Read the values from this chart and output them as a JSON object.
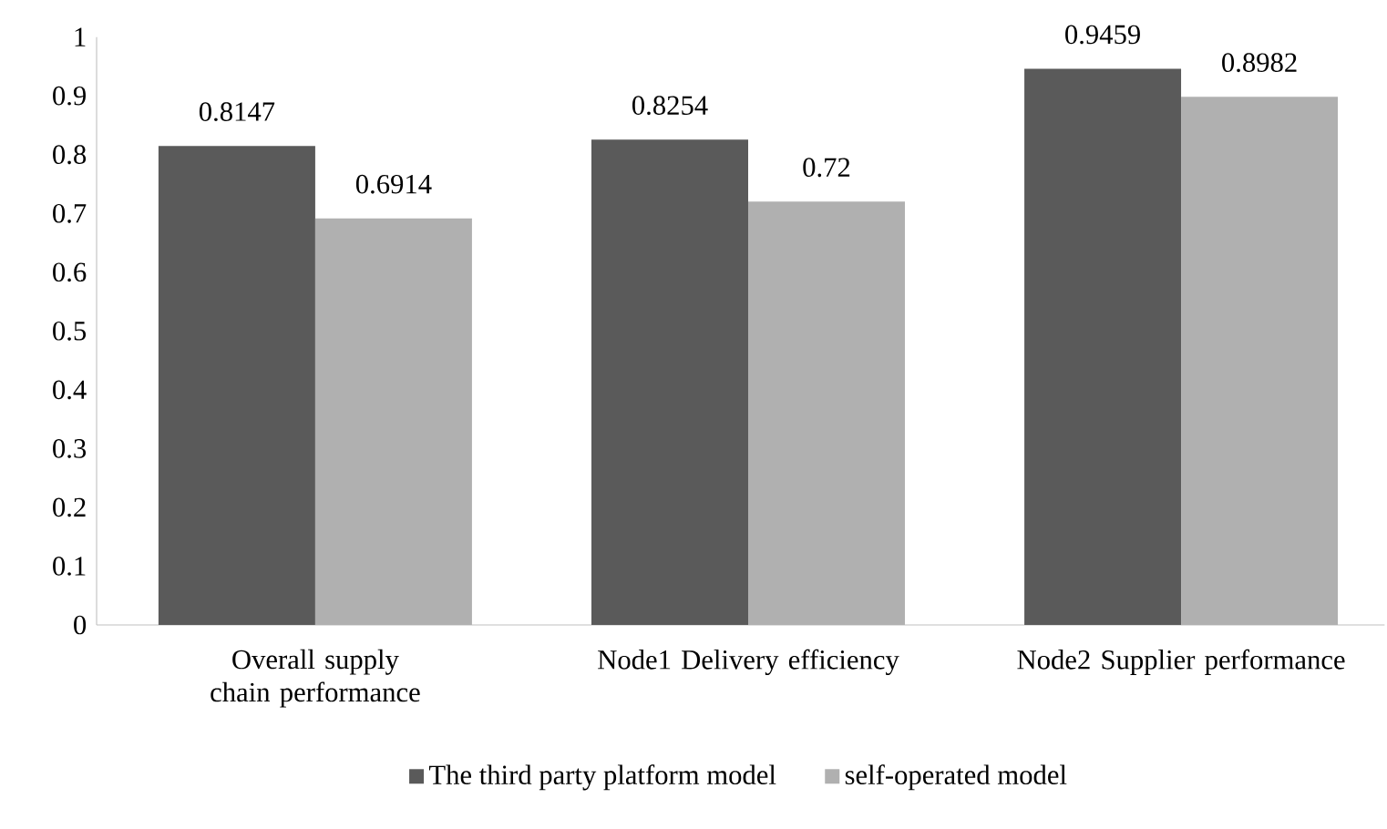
{
  "chart_data": {
    "type": "bar",
    "categories": [
      "Overall supply chain performance",
      "Node1 Delivery efficiency",
      "Node2 Supplier performance"
    ],
    "series": [
      {
        "name": "The third party platform model",
        "color": "#5a5a5a",
        "values": [
          0.8147,
          0.8254,
          0.9459
        ],
        "value_labels": [
          "0.8147",
          "0.8254",
          "0.9459"
        ]
      },
      {
        "name": "self-operated model",
        "color": "#b0b0b0",
        "values": [
          0.6914,
          0.72,
          0.8982
        ],
        "value_labels": [
          "0.6914",
          "0.72",
          "0.8982"
        ]
      }
    ],
    "ylim": [
      0,
      1
    ],
    "yticks": [
      0,
      0.1,
      0.2,
      0.3,
      0.4,
      0.5,
      0.6,
      0.7,
      0.8,
      0.9,
      1
    ],
    "grid": false,
    "legend": "bottom"
  }
}
